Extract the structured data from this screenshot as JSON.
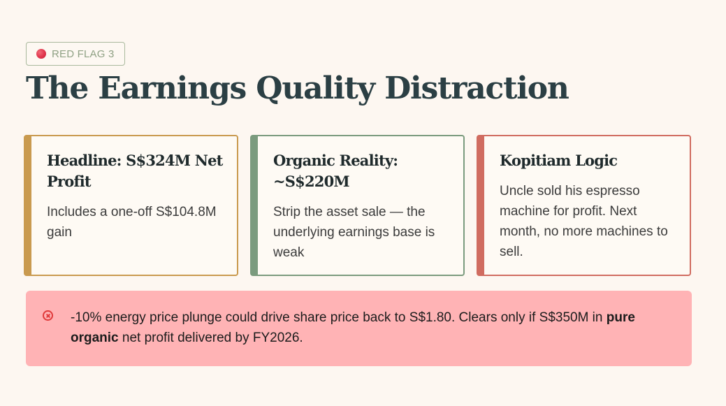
{
  "badge": {
    "label": "RED FLAG 3",
    "dot_color": "#e0344b"
  },
  "title": "The Earnings Quality Distraction",
  "cards": [
    {
      "heading": "Headline: S$324M Net Profit",
      "body": "Includes a one-off S$104.8M gain",
      "accent": "#c99a4f"
    },
    {
      "heading": "Organic Reality: ~S$220M",
      "body": "Strip the asset sale — the underlying earnings base is weak",
      "accent": "#7b9b7e"
    },
    {
      "heading": "Kopitiam Logic",
      "body": "Uncle sold his espresso machine for profit. Next month, no more machines to sell.",
      "accent": "#d06c60"
    }
  ],
  "alert": {
    "icon": "x-circle-icon",
    "text_before": "-10% energy price plunge could drive share price back to S$1.80. Clears only if S$350M in ",
    "emphasis": "pure organic",
    "text_after": " net profit delivered by FY2026.",
    "background": "#ffb3b5",
    "icon_color": "#e03a3a"
  }
}
